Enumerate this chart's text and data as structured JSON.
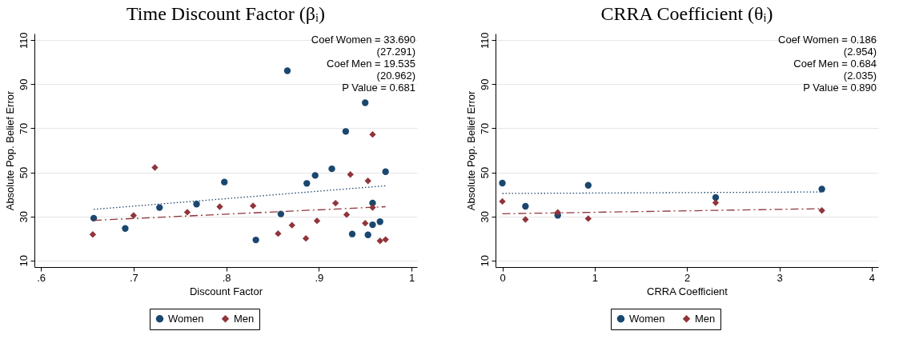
{
  "chart_data": [
    {
      "type": "scatter",
      "title": "Time Discount Factor (βᵢ)",
      "xlabel": "Discount Factor",
      "ylabel": "Absolute Pop. Belief Error",
      "xlim": [
        0.593,
        1.006
      ],
      "xticks": [
        {
          "value": 0.6,
          "label": ".6"
        },
        {
          "value": 0.7,
          "label": ".7"
        },
        {
          "value": 0.8,
          "label": ".8"
        },
        {
          "value": 0.9,
          "label": ".9"
        },
        1
      ],
      "ylim": [
        7,
        113
      ],
      "yticks": [
        10,
        30,
        50,
        70,
        90,
        110
      ],
      "grid": "y",
      "legend": "bottom",
      "annotations": [
        "Coef Women = 33.690",
        "(27.291)",
        "Coef Men = 19.535",
        "(20.962)",
        "P Value  = 0.681"
      ],
      "series": [
        {
          "name": "Women",
          "type": "scatter",
          "marker": "circle",
          "color": "#1a476f",
          "x": [
            0.657,
            0.691,
            0.728,
            0.768,
            0.798,
            0.832,
            0.859,
            0.866,
            0.887,
            0.896,
            0.914,
            0.929,
            0.936,
            0.95,
            0.953,
            0.958,
            0.958,
            0.966,
            0.972
          ],
          "values": [
            29.2,
            24.5,
            34.0,
            35.6,
            45.6,
            19.3,
            31.1,
            96.1,
            45.0,
            48.6,
            51.6,
            68.6,
            22.0,
            81.6,
            21.6,
            36.1,
            26.2,
            27.6,
            50.3
          ]
        },
        {
          "name": "Men",
          "type": "scatter",
          "marker": "diamond",
          "color": "#90353b",
          "x": [
            0.656,
            0.7,
            0.723,
            0.758,
            0.793,
            0.829,
            0.856,
            0.871,
            0.886,
            0.898,
            0.918,
            0.93,
            0.934,
            0.95,
            0.953,
            0.958,
            0.958,
            0.966,
            0.972
          ],
          "values": [
            21.8,
            30.4,
            52.2,
            31.9,
            34.4,
            34.8,
            22.2,
            26.0,
            20.0,
            28.0,
            36.0,
            30.8,
            49.0,
            26.9,
            46.1,
            67.2,
            34.0,
            18.9,
            19.5
          ]
        },
        {
          "type": "line",
          "line_style": "dotted",
          "color": "#1a476f",
          "x": [
            0.657,
            0.972
          ],
          "values": [
            33.2,
            43.9
          ]
        },
        {
          "type": "line",
          "line_style": "dashed",
          "color": "#90353b",
          "x": [
            0.657,
            0.972
          ],
          "values": [
            28.2,
            34.4
          ]
        }
      ]
    },
    {
      "type": "scatter",
      "title": "CRRA Coefficient (θᵢ)",
      "xlabel": "CRRA Coefficient",
      "ylabel": "Absolute Pop. Belief Error",
      "xlim": [
        -0.074,
        4.07
      ],
      "xticks": [
        0,
        1,
        2,
        3,
        4
      ],
      "ylim": [
        7,
        113
      ],
      "yticks": [
        10,
        30,
        50,
        70,
        90,
        110
      ],
      "grid": "y",
      "legend": "bottom",
      "annotations": [
        "Coef Women = 0.186",
        "(2.954)",
        "Coef Men = 0.684",
        "(2.035)",
        "P Value  = 0.890"
      ],
      "series": [
        {
          "name": "Women",
          "type": "scatter",
          "marker": "circle",
          "color": "#1a476f",
          "x": [
            0,
            0.25,
            0.6,
            0.93,
            2.31,
            3.46
          ],
          "values": [
            45.1,
            34.6,
            30.5,
            44.1,
            38.6,
            42.4
          ]
        },
        {
          "name": "Men",
          "type": "scatter",
          "marker": "diamond",
          "color": "#90353b",
          "x": [
            0,
            0.25,
            0.6,
            0.93,
            2.31,
            3.46
          ],
          "values": [
            36.8,
            28.6,
            31.8,
            29.0,
            36.2,
            32.7
          ]
        },
        {
          "type": "line",
          "line_style": "dotted",
          "color": "#1a476f",
          "x": [
            0,
            3.46
          ],
          "values": [
            40.4,
            41.1
          ]
        },
        {
          "type": "line",
          "line_style": "dashed",
          "color": "#90353b",
          "x": [
            0,
            3.46
          ],
          "values": [
            31.2,
            33.5
          ]
        }
      ]
    }
  ]
}
